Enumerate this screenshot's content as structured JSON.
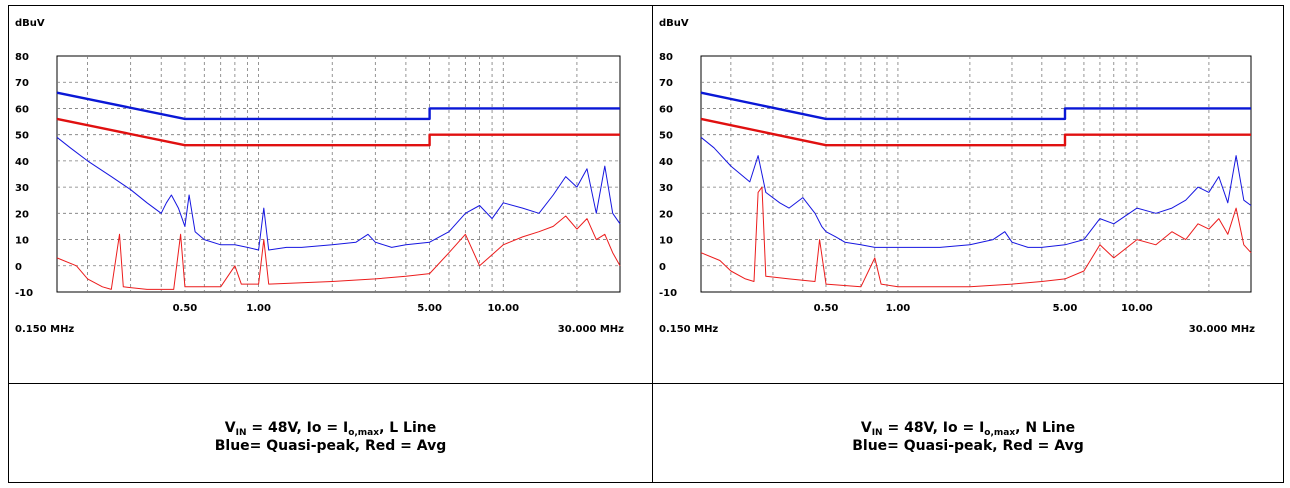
{
  "colors": {
    "quasi_peak": "#1616e0",
    "average": "#ec1c1c",
    "limit_qp": "#0a18d6",
    "limit_avg": "#e01010",
    "grid": "#7a7a7a"
  },
  "panels": [
    {
      "caption": {
        "line1": {
          "v": "V",
          "v_sub": "IN",
          "mid": " = 48V, Io = I",
          "i_sub": "o,max",
          "tail": ", L Line"
        },
        "line2": "Blue= Quasi-peak, Red = Avg"
      }
    },
    {
      "caption": {
        "line1": {
          "v": "V",
          "v_sub": "IN",
          "mid": " = 48V, Io = I",
          "i_sub": "o,max",
          "tail": ", N Line"
        },
        "line2": "Blue= Quasi-peak, Red = Avg"
      }
    }
  ],
  "chart_data": [
    {
      "type": "line",
      "ylabel": "dBuV",
      "ylim": [
        -10,
        80
      ],
      "y_ticks": [
        "80",
        "70",
        "60",
        "50",
        "40",
        "30",
        "20",
        "10",
        "0",
        "-10"
      ],
      "x_scale": "log",
      "xlim_mhz": [
        0.15,
        30
      ],
      "x_tick_labels": [
        {
          "x": 0.5,
          "label": "0.50"
        },
        {
          "x": 1.0,
          "label": "1.00"
        },
        {
          "x": 5.0,
          "label": "5.00"
        },
        {
          "x": 10.0,
          "label": "10.00"
        }
      ],
      "x_start_label": "0.150 MHz",
      "x_end_label": "30.000 MHz",
      "grid": true,
      "series": [
        {
          "name": "Quasi-peak limit",
          "color_key": "limit_qp",
          "points": [
            [
              0.15,
              66
            ],
            [
              0.5,
              56
            ],
            [
              5,
              56
            ],
            [
              5,
              60
            ],
            [
              30,
              60
            ]
          ]
        },
        {
          "name": "Average limit",
          "color_key": "limit_avg",
          "points": [
            [
              0.15,
              56
            ],
            [
              0.5,
              46
            ],
            [
              5,
              46
            ],
            [
              5,
              50
            ],
            [
              30,
              50
            ]
          ]
        },
        {
          "name": "Quasi-peak",
          "color_key": "quasi_peak",
          "points": [
            [
              0.15,
              49
            ],
            [
              0.17,
              45
            ],
            [
              0.2,
              40
            ],
            [
              0.25,
              34
            ],
            [
              0.3,
              29
            ],
            [
              0.35,
              24
            ],
            [
              0.4,
              20
            ],
            [
              0.42,
              24
            ],
            [
              0.44,
              27
            ],
            [
              0.47,
              22
            ],
            [
              0.5,
              15
            ],
            [
              0.52,
              27
            ],
            [
              0.55,
              13
            ],
            [
              0.6,
              10
            ],
            [
              0.7,
              8
            ],
            [
              0.8,
              8
            ],
            [
              0.9,
              7
            ],
            [
              1.0,
              6
            ],
            [
              1.05,
              22
            ],
            [
              1.1,
              6
            ],
            [
              1.3,
              7
            ],
            [
              1.5,
              7
            ],
            [
              2.0,
              8
            ],
            [
              2.5,
              9
            ],
            [
              2.8,
              12
            ],
            [
              3.0,
              9
            ],
            [
              3.5,
              7
            ],
            [
              4.0,
              8
            ],
            [
              5.0,
              9
            ],
            [
              6.0,
              13
            ],
            [
              7.0,
              20
            ],
            [
              8.0,
              23
            ],
            [
              9.0,
              18
            ],
            [
              10.0,
              24
            ],
            [
              12.0,
              22
            ],
            [
              14.0,
              20
            ],
            [
              16.0,
              27
            ],
            [
              18.0,
              34
            ],
            [
              20.0,
              30
            ],
            [
              22.0,
              37
            ],
            [
              24.0,
              20
            ],
            [
              26.0,
              38
            ],
            [
              28.0,
              20
            ],
            [
              30.0,
              16
            ]
          ]
        },
        {
          "name": "Average",
          "color_key": "average",
          "points": [
            [
              0.15,
              3
            ],
            [
              0.18,
              0
            ],
            [
              0.2,
              -5
            ],
            [
              0.23,
              -8
            ],
            [
              0.25,
              -9
            ],
            [
              0.27,
              12
            ],
            [
              0.28,
              -8
            ],
            [
              0.35,
              -9
            ],
            [
              0.45,
              -9
            ],
            [
              0.48,
              12
            ],
            [
              0.5,
              -8
            ],
            [
              0.7,
              -8
            ],
            [
              0.8,
              0
            ],
            [
              0.85,
              -7
            ],
            [
              1.0,
              -7
            ],
            [
              1.05,
              10
            ],
            [
              1.1,
              -7
            ],
            [
              2.0,
              -6
            ],
            [
              3.0,
              -5
            ],
            [
              4.0,
              -4
            ],
            [
              5.0,
              -3
            ],
            [
              6.0,
              5
            ],
            [
              7.0,
              12
            ],
            [
              8.0,
              0
            ],
            [
              10.0,
              8
            ],
            [
              12.0,
              11
            ],
            [
              14.0,
              13
            ],
            [
              16.0,
              15
            ],
            [
              18.0,
              19
            ],
            [
              20.0,
              14
            ],
            [
              22.0,
              18
            ],
            [
              24.0,
              10
            ],
            [
              26.0,
              12
            ],
            [
              28.0,
              5
            ],
            [
              30.0,
              0
            ]
          ]
        }
      ]
    },
    {
      "type": "line",
      "ylabel": "dBuV",
      "ylim": [
        -10,
        80
      ],
      "y_ticks": [
        "80",
        "70",
        "60",
        "50",
        "40",
        "30",
        "20",
        "10",
        "0",
        "-10"
      ],
      "x_scale": "log",
      "xlim_mhz": [
        0.15,
        30
      ],
      "x_tick_labels": [
        {
          "x": 0.5,
          "label": "0.50"
        },
        {
          "x": 1.0,
          "label": "1.00"
        },
        {
          "x": 5.0,
          "label": "5.00"
        },
        {
          "x": 10.0,
          "label": "10.00"
        }
      ],
      "x_start_label": "0.150 MHz",
      "x_end_label": "30.000 MHz",
      "grid": true,
      "series": [
        {
          "name": "Quasi-peak limit",
          "color_key": "limit_qp",
          "points": [
            [
              0.15,
              66
            ],
            [
              0.5,
              56
            ],
            [
              5,
              56
            ],
            [
              5,
              60
            ],
            [
              30,
              60
            ]
          ]
        },
        {
          "name": "Average limit",
          "color_key": "limit_avg",
          "points": [
            [
              0.15,
              56
            ],
            [
              0.5,
              46
            ],
            [
              5,
              46
            ],
            [
              5,
              50
            ],
            [
              30,
              50
            ]
          ]
        },
        {
          "name": "Quasi-peak",
          "color_key": "quasi_peak",
          "points": [
            [
              0.15,
              49
            ],
            [
              0.17,
              45
            ],
            [
              0.2,
              38
            ],
            [
              0.24,
              32
            ],
            [
              0.26,
              42
            ],
            [
              0.28,
              28
            ],
            [
              0.32,
              24
            ],
            [
              0.35,
              22
            ],
            [
              0.4,
              26
            ],
            [
              0.45,
              20
            ],
            [
              0.48,
              15
            ],
            [
              0.5,
              13
            ],
            [
              0.55,
              11
            ],
            [
              0.6,
              9
            ],
            [
              0.7,
              8
            ],
            [
              0.8,
              7
            ],
            [
              1.0,
              7
            ],
            [
              1.5,
              7
            ],
            [
              2.0,
              8
            ],
            [
              2.5,
              10
            ],
            [
              2.8,
              13
            ],
            [
              3.0,
              9
            ],
            [
              3.5,
              7
            ],
            [
              4.0,
              7
            ],
            [
              5.0,
              8
            ],
            [
              6.0,
              10
            ],
            [
              7.0,
              18
            ],
            [
              8.0,
              16
            ],
            [
              10.0,
              22
            ],
            [
              12.0,
              20
            ],
            [
              14.0,
              22
            ],
            [
              16.0,
              25
            ],
            [
              18.0,
              30
            ],
            [
              20.0,
              28
            ],
            [
              22.0,
              34
            ],
            [
              24.0,
              24
            ],
            [
              26.0,
              42
            ],
            [
              28.0,
              25
            ],
            [
              30.0,
              23
            ]
          ]
        },
        {
          "name": "Average",
          "color_key": "average",
          "points": [
            [
              0.15,
              5
            ],
            [
              0.18,
              2
            ],
            [
              0.2,
              -2
            ],
            [
              0.23,
              -5
            ],
            [
              0.25,
              -6
            ],
            [
              0.26,
              28
            ],
            [
              0.27,
              30
            ],
            [
              0.28,
              -4
            ],
            [
              0.35,
              -5
            ],
            [
              0.45,
              -6
            ],
            [
              0.47,
              10
            ],
            [
              0.5,
              -7
            ],
            [
              0.7,
              -8
            ],
            [
              0.8,
              3
            ],
            [
              0.85,
              -7
            ],
            [
              1.0,
              -8
            ],
            [
              2.0,
              -8
            ],
            [
              3.0,
              -7
            ],
            [
              4.0,
              -6
            ],
            [
              5.0,
              -5
            ],
            [
              6.0,
              -2
            ],
            [
              7.0,
              8
            ],
            [
              8.0,
              3
            ],
            [
              10.0,
              10
            ],
            [
              12.0,
              8
            ],
            [
              14.0,
              13
            ],
            [
              16.0,
              10
            ],
            [
              18.0,
              16
            ],
            [
              20.0,
              14
            ],
            [
              22.0,
              18
            ],
            [
              24.0,
              12
            ],
            [
              26.0,
              22
            ],
            [
              28.0,
              8
            ],
            [
              30.0,
              5
            ]
          ]
        }
      ]
    }
  ]
}
